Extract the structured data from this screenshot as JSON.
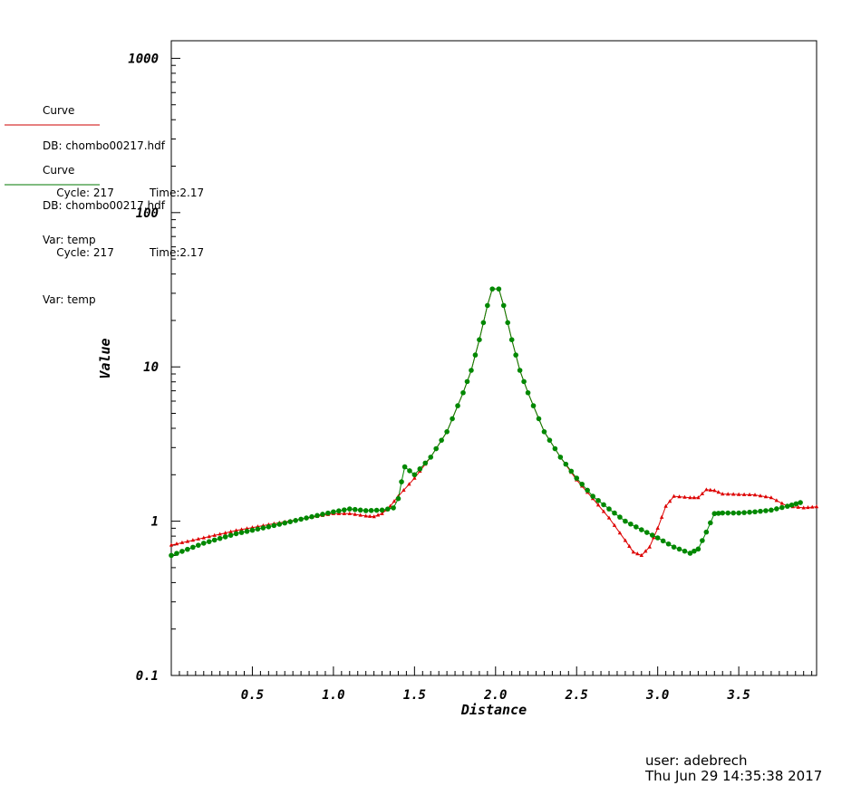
{
  "legend": [
    {
      "title": "Curve",
      "db": "DB: chombo00217.hdf",
      "cycle": "Cycle: 217",
      "time": "Time:2.17",
      "var": "Var: temp",
      "color": "#cc0000"
    },
    {
      "title": "Curve",
      "db": "DB: chombo00217.hdf",
      "cycle": "Cycle: 217",
      "time": "Time:2.17",
      "var": "Var: temp",
      "color": "#007700"
    }
  ],
  "footer": {
    "user": "user: adebrech",
    "date": "Thu Jun 29 14:35:38 2017"
  },
  "chart_data": {
    "type": "line",
    "xlabel": "Distance",
    "ylabel": "Value",
    "xlim": [
      0.0,
      3.98
    ],
    "ylim": [
      0.1,
      1300
    ],
    "yscale": "log",
    "x_ticks": [
      0.5,
      1.0,
      1.5,
      2.0,
      2.5,
      3.0,
      3.5
    ],
    "x_tick_labels": [
      "0.5",
      "1.0",
      "1.5",
      "2.0",
      "2.5",
      "3.0",
      "3.5"
    ],
    "y_ticks": [
      0.1,
      1,
      10,
      100,
      1000
    ],
    "y_tick_labels": [
      "0.1",
      "1",
      "10",
      "100",
      "1000"
    ],
    "grid": false,
    "series": [
      {
        "color": "#dd0000",
        "marker": "triangle",
        "points": [
          [
            0.0,
            0.7
          ],
          [
            0.2,
            0.78
          ],
          [
            0.4,
            0.87
          ],
          [
            0.6,
            0.95
          ],
          [
            0.8,
            1.03
          ],
          [
            1.0,
            1.12
          ],
          [
            1.1,
            1.12
          ],
          [
            1.2,
            1.08
          ],
          [
            1.25,
            1.07
          ],
          [
            1.3,
            1.12
          ],
          [
            1.35,
            1.25
          ],
          [
            1.4,
            1.45
          ],
          [
            1.5,
            1.9
          ],
          [
            1.6,
            2.6
          ],
          [
            1.7,
            3.8
          ],
          [
            1.8,
            6.8
          ],
          [
            1.85,
            9.5
          ],
          [
            1.9,
            15
          ],
          [
            1.95,
            25
          ],
          [
            1.98,
            32
          ],
          [
            2.02,
            32
          ],
          [
            2.05,
            25
          ],
          [
            2.1,
            15
          ],
          [
            2.15,
            9.5
          ],
          [
            2.2,
            6.8
          ],
          [
            2.3,
            3.8
          ],
          [
            2.4,
            2.6
          ],
          [
            2.5,
            1.85
          ],
          [
            2.6,
            1.4
          ],
          [
            2.7,
            1.05
          ],
          [
            2.8,
            0.75
          ],
          [
            2.85,
            0.63
          ],
          [
            2.9,
            0.6
          ],
          [
            2.95,
            0.68
          ],
          [
            3.0,
            0.9
          ],
          [
            3.05,
            1.25
          ],
          [
            3.1,
            1.45
          ],
          [
            3.2,
            1.42
          ],
          [
            3.25,
            1.42
          ],
          [
            3.3,
            1.6
          ],
          [
            3.35,
            1.58
          ],
          [
            3.4,
            1.5
          ],
          [
            3.6,
            1.48
          ],
          [
            3.7,
            1.42
          ],
          [
            3.8,
            1.25
          ],
          [
            3.9,
            1.22
          ],
          [
            3.98,
            1.24
          ]
        ]
      },
      {
        "color": "#008800",
        "marker": "circle",
        "points": [
          [
            0.0,
            0.6
          ],
          [
            0.2,
            0.72
          ],
          [
            0.4,
            0.83
          ],
          [
            0.6,
            0.92
          ],
          [
            0.8,
            1.03
          ],
          [
            1.0,
            1.15
          ],
          [
            1.1,
            1.2
          ],
          [
            1.2,
            1.17
          ],
          [
            1.3,
            1.18
          ],
          [
            1.37,
            1.22
          ],
          [
            1.4,
            1.4
          ],
          [
            1.42,
            1.8
          ],
          [
            1.44,
            2.25
          ],
          [
            1.5,
            2.0
          ],
          [
            1.6,
            2.6
          ],
          [
            1.7,
            3.8
          ],
          [
            1.8,
            6.8
          ],
          [
            1.85,
            9.5
          ],
          [
            1.9,
            15
          ],
          [
            1.95,
            25
          ],
          [
            1.98,
            32
          ],
          [
            2.02,
            32
          ],
          [
            2.05,
            25
          ],
          [
            2.1,
            15
          ],
          [
            2.15,
            9.5
          ],
          [
            2.2,
            6.8
          ],
          [
            2.3,
            3.8
          ],
          [
            2.4,
            2.6
          ],
          [
            2.5,
            1.9
          ],
          [
            2.6,
            1.45
          ],
          [
            2.7,
            1.2
          ],
          [
            2.8,
            1.0
          ],
          [
            2.9,
            0.88
          ],
          [
            3.0,
            0.78
          ],
          [
            3.1,
            0.68
          ],
          [
            3.2,
            0.62
          ],
          [
            3.25,
            0.66
          ],
          [
            3.3,
            0.85
          ],
          [
            3.35,
            1.12
          ],
          [
            3.4,
            1.13
          ],
          [
            3.5,
            1.13
          ],
          [
            3.6,
            1.15
          ],
          [
            3.7,
            1.18
          ],
          [
            3.8,
            1.25
          ],
          [
            3.88,
            1.32
          ]
        ]
      }
    ]
  }
}
